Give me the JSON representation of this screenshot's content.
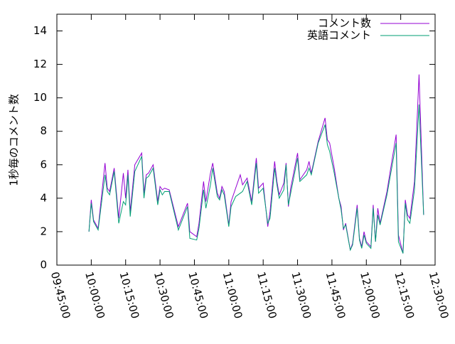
{
  "chart_data": {
    "type": "line",
    "ylabel": "1秒毎のコメント数",
    "x": [
      "09:59:00",
      "10:00:00",
      "10:01:00",
      "10:03:00",
      "10:06:00",
      "10:07:00",
      "10:08:00",
      "10:10:00",
      "10:12:00",
      "10:14:00",
      "10:15:00",
      "10:16:00",
      "10:17:00",
      "10:19:00",
      "10:22:00",
      "10:23:00",
      "10:24:00",
      "10:25:00",
      "10:27:00",
      "10:29:00",
      "10:30:00",
      "10:31:00",
      "10:32:00",
      "10:34:00",
      "10:38:00",
      "10:40:00",
      "10:42:00",
      "10:43:00",
      "10:46:00",
      "10:47:00",
      "10:49:00",
      "10:50:00",
      "10:52:00",
      "10:53:00",
      "10:55:00",
      "10:56:00",
      "10:57:00",
      "10:58:00",
      "11:00:00",
      "11:01:00",
      "11:03:00",
      "11:05:00",
      "11:06:00",
      "11:08:00",
      "11:10:00",
      "11:12:00",
      "11:13:00",
      "11:15:00",
      "11:17:00",
      "11:18:00",
      "11:20:00",
      "11:21:00",
      "11:22:00",
      "11:24:00",
      "11:25:00",
      "11:26:00",
      "11:27:00",
      "11:30:00",
      "11:31:00",
      "11:34:00",
      "11:35:00",
      "11:36:00",
      "11:39:00",
      "11:42:00",
      "11:43:00",
      "11:44:00",
      "11:46:00",
      "11:48:00",
      "11:49:00",
      "11:50:00",
      "11:51:00",
      "11:53:00",
      "11:54:00",
      "11:56:00",
      "11:57:00",
      "11:58:00",
      "11:59:00",
      "12:00:00",
      "12:02:00",
      "12:03:00",
      "12:04:00",
      "12:05:00",
      "12:06:00",
      "12:09:00",
      "12:13:00",
      "12:14:00",
      "12:16:00",
      "12:17:00",
      "12:18:00",
      "12:19:00",
      "12:21:00",
      "12:23:00",
      "12:25:00"
    ],
    "series": [
      {
        "name": "コメント数",
        "color": "#9400d3",
        "values": [
          2.0,
          3.9,
          2.7,
          2.2,
          6.1,
          4.6,
          4.4,
          5.8,
          2.8,
          5.5,
          4.0,
          5.7,
          3.2,
          6.0,
          6.7,
          4.3,
          5.4,
          5.5,
          6.0,
          3.8,
          4.7,
          4.5,
          4.6,
          4.5,
          2.3,
          3.0,
          3.7,
          2.0,
          1.7,
          2.5,
          5.0,
          3.8,
          5.5,
          6.1,
          4.3,
          4.0,
          4.7,
          4.4,
          2.4,
          3.8,
          4.6,
          5.4,
          4.8,
          5.2,
          3.8,
          6.4,
          4.6,
          4.9,
          2.3,
          3.2,
          6.2,
          5.0,
          4.2,
          4.9,
          6.1,
          3.5,
          4.6,
          6.7,
          5.1,
          5.7,
          6.2,
          5.5,
          7.4,
          8.8,
          7.5,
          7.3,
          5.8,
          4.0,
          3.5,
          2.1,
          2.5,
          0.9,
          1.3,
          3.6,
          1.6,
          1.1,
          2.0,
          1.4,
          1.1,
          3.6,
          1.4,
          3.4,
          2.5,
          4.4,
          7.8,
          1.8,
          0.7,
          3.9,
          3.0,
          2.8,
          5.0,
          11.4,
          3.0
        ]
      },
      {
        "name": "英語コメント",
        "color": "#009e73",
        "values": [
          2.0,
          3.7,
          2.6,
          2.1,
          5.4,
          4.4,
          4.2,
          5.6,
          2.5,
          3.8,
          3.6,
          5.4,
          2.9,
          5.6,
          6.5,
          4.0,
          5.2,
          5.3,
          5.8,
          3.6,
          4.5,
          4.2,
          4.4,
          4.4,
          2.1,
          2.8,
          3.5,
          1.6,
          1.5,
          2.2,
          4.5,
          3.4,
          4.8,
          5.8,
          4.1,
          3.9,
          4.5,
          4.2,
          2.3,
          3.5,
          4.1,
          4.3,
          4.4,
          5.0,
          3.6,
          6.1,
          4.3,
          4.6,
          2.5,
          2.8,
          5.8,
          4.8,
          4.0,
          4.5,
          6.0,
          3.6,
          4.3,
          6.4,
          5.0,
          5.4,
          5.8,
          5.4,
          7.3,
          8.4,
          7.2,
          6.8,
          5.5,
          4.0,
          3.3,
          2.2,
          2.4,
          0.9,
          1.2,
          3.4,
          1.5,
          1.0,
          1.8,
          1.3,
          1.0,
          3.4,
          1.4,
          3.0,
          2.4,
          4.2,
          7.3,
          1.4,
          0.7,
          3.7,
          2.7,
          2.5,
          4.5,
          9.6,
          3.0
        ]
      }
    ],
    "xlim": [
      "09:45:00",
      "12:30:00"
    ],
    "xticks": [
      "09:45:00",
      "10:00:00",
      "10:15:00",
      "10:30:00",
      "10:45:00",
      "11:00:00",
      "11:15:00",
      "11:30:00",
      "11:45:00",
      "12:00:00",
      "12:15:00",
      "12:30:00"
    ],
    "ylim": [
      0,
      15
    ],
    "yticks": [
      0,
      2,
      4,
      6,
      8,
      10,
      12,
      14
    ],
    "legend": "top-right"
  }
}
